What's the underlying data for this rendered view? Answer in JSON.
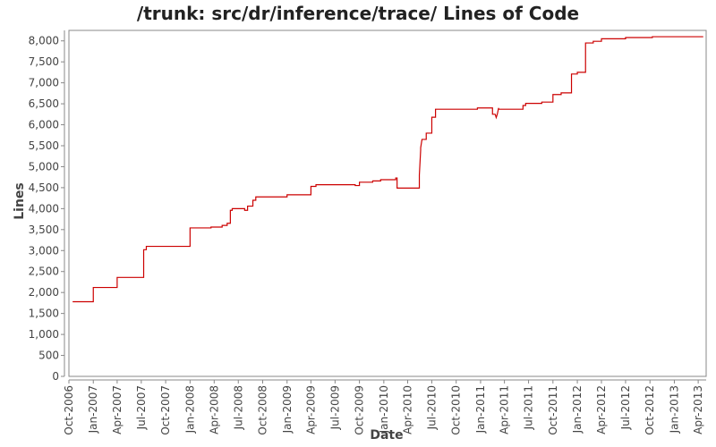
{
  "chart_data": {
    "type": "line",
    "title": "/trunk: src/dr/inference/trace/ Lines of Code",
    "xlabel": "Date",
    "ylabel": "Lines",
    "ylim": [
      0,
      8250
    ],
    "xlim": [
      "2006-10-01",
      "2013-05-01"
    ],
    "y_ticks": [
      0,
      500,
      1000,
      1500,
      2000,
      2500,
      3000,
      3500,
      4000,
      4500,
      5000,
      5500,
      6000,
      6500,
      7000,
      7500,
      8000
    ],
    "y_tick_labels": [
      "0",
      "500",
      "1,000",
      "1,500",
      "2,000",
      "2,500",
      "3,000",
      "3,500",
      "4,000",
      "4,500",
      "5,000",
      "5,500",
      "6,000",
      "6,500",
      "7,000",
      "7,500",
      "8,000"
    ],
    "x_ticks": [
      "2006-10-01",
      "2007-01-01",
      "2007-04-01",
      "2007-07-01",
      "2007-10-01",
      "2008-01-01",
      "2008-04-01",
      "2008-07-01",
      "2008-10-01",
      "2009-01-01",
      "2009-04-01",
      "2009-07-01",
      "2009-10-01",
      "2010-01-01",
      "2010-04-01",
      "2010-07-01",
      "2010-10-01",
      "2011-01-01",
      "2011-04-01",
      "2011-07-01",
      "2011-10-01",
      "2012-01-01",
      "2012-04-01",
      "2012-07-01",
      "2012-10-01",
      "2013-01-01",
      "2013-04-01"
    ],
    "x_tick_labels": [
      "Oct-2006",
      "Jan-2007",
      "Apr-2007",
      "Jul-2007",
      "Oct-2007",
      "Jan-2008",
      "Apr-2008",
      "Jul-2008",
      "Oct-2008",
      "Jan-2009",
      "Apr-2009",
      "Jul-2009",
      "Oct-2009",
      "Jan-2010",
      "Apr-2010",
      "Jul-2010",
      "Oct-2010",
      "Jan-2011",
      "Apr-2011",
      "Jul-2011",
      "Oct-2011",
      "Jan-2012",
      "Apr-2012",
      "Jul-2012",
      "Oct-2012",
      "Jan-2013",
      "Apr-2013"
    ],
    "grid": false,
    "series": [
      {
        "color": "#cc0000",
        "points": [
          [
            "2006-10-15",
            1780
          ],
          [
            "2007-01-01",
            1780
          ],
          [
            "2007-01-01",
            2120
          ],
          [
            "2007-04-01",
            2120
          ],
          [
            "2007-04-01",
            2360
          ],
          [
            "2007-07-10",
            2360
          ],
          [
            "2007-07-10",
            3020
          ],
          [
            "2007-07-20",
            3020
          ],
          [
            "2007-07-20",
            3100
          ],
          [
            "2008-01-01",
            3100
          ],
          [
            "2008-01-01",
            3540
          ],
          [
            "2008-03-20",
            3540
          ],
          [
            "2008-03-20",
            3560
          ],
          [
            "2008-05-01",
            3560
          ],
          [
            "2008-05-01",
            3600
          ],
          [
            "2008-05-20",
            3600
          ],
          [
            "2008-05-20",
            3650
          ],
          [
            "2008-06-01",
            3650
          ],
          [
            "2008-06-01",
            3960
          ],
          [
            "2008-06-08",
            3960
          ],
          [
            "2008-06-08",
            4000
          ],
          [
            "2008-07-25",
            4000
          ],
          [
            "2008-07-25",
            3960
          ],
          [
            "2008-08-05",
            3960
          ],
          [
            "2008-08-05",
            4060
          ],
          [
            "2008-08-25",
            4060
          ],
          [
            "2008-08-25",
            4200
          ],
          [
            "2008-09-05",
            4200
          ],
          [
            "2008-09-05",
            4280
          ],
          [
            "2009-01-01",
            4280
          ],
          [
            "2009-01-01",
            4330
          ],
          [
            "2009-04-01",
            4330
          ],
          [
            "2009-04-01",
            4530
          ],
          [
            "2009-04-20",
            4530
          ],
          [
            "2009-04-20",
            4570
          ],
          [
            "2009-09-15",
            4570
          ],
          [
            "2009-09-15",
            4550
          ],
          [
            "2009-10-01",
            4550
          ],
          [
            "2009-10-01",
            4630
          ],
          [
            "2009-11-20",
            4630
          ],
          [
            "2009-11-20",
            4660
          ],
          [
            "2009-12-20",
            4660
          ],
          [
            "2009-12-20",
            4690
          ],
          [
            "2010-02-15",
            4690
          ],
          [
            "2010-02-15",
            4730
          ],
          [
            "2010-02-20",
            4730
          ],
          [
            "2010-02-20",
            4490
          ],
          [
            "2010-05-15",
            4490
          ],
          [
            "2010-05-15",
            4800
          ],
          [
            "2010-05-20",
            5400
          ],
          [
            "2010-05-20",
            5450
          ],
          [
            "2010-05-25",
            5650
          ],
          [
            "2010-06-10",
            5650
          ],
          [
            "2010-06-10",
            5800
          ],
          [
            "2010-07-01",
            5800
          ],
          [
            "2010-07-01",
            6180
          ],
          [
            "2010-07-15",
            6180
          ],
          [
            "2010-07-15",
            6370
          ],
          [
            "2010-12-20",
            6370
          ],
          [
            "2010-12-20",
            6400
          ],
          [
            "2011-02-15",
            6400
          ],
          [
            "2011-02-15",
            6250
          ],
          [
            "2011-02-25",
            6250
          ],
          [
            "2011-03-01",
            6170
          ],
          [
            "2011-03-05",
            6250
          ],
          [
            "2011-03-10",
            6400
          ],
          [
            "2011-03-10",
            6370
          ],
          [
            "2011-06-10",
            6370
          ],
          [
            "2011-06-10",
            6460
          ],
          [
            "2011-06-20",
            6460
          ],
          [
            "2011-06-20",
            6510
          ],
          [
            "2011-08-20",
            6510
          ],
          [
            "2011-08-20",
            6540
          ],
          [
            "2011-10-01",
            6540
          ],
          [
            "2011-10-01",
            6720
          ],
          [
            "2011-11-01",
            6720
          ],
          [
            "2011-11-01",
            6760
          ],
          [
            "2011-12-10",
            6760
          ],
          [
            "2011-12-10",
            7210
          ],
          [
            "2012-01-01",
            7210
          ],
          [
            "2012-01-01",
            7250
          ],
          [
            "2012-02-01",
            7250
          ],
          [
            "2012-02-01",
            7950
          ],
          [
            "2012-03-01",
            7950
          ],
          [
            "2012-03-01",
            7990
          ],
          [
            "2012-04-01",
            7990
          ],
          [
            "2012-04-01",
            8050
          ],
          [
            "2012-07-01",
            8050
          ],
          [
            "2012-07-01",
            8080
          ],
          [
            "2012-10-10",
            8080
          ],
          [
            "2012-10-10",
            8100
          ],
          [
            "2013-04-20",
            8100
          ]
        ]
      }
    ]
  }
}
